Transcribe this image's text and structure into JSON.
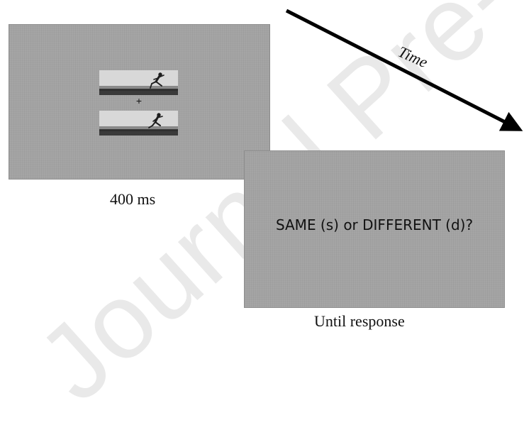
{
  "watermark": {
    "text": "Journal Pre-proof"
  },
  "screens": [
    {
      "fixation": "+",
      "caption": "400 ms"
    },
    {
      "prompt": "SAME (s) or DIFFERENT (d)?",
      "caption": "Until response"
    }
  ],
  "timeline": {
    "label": "Time"
  },
  "colors": {
    "screen": "#a3a3a3",
    "text": "#111111",
    "arrow": "#000000",
    "watermark": "#e9e9e9"
  }
}
